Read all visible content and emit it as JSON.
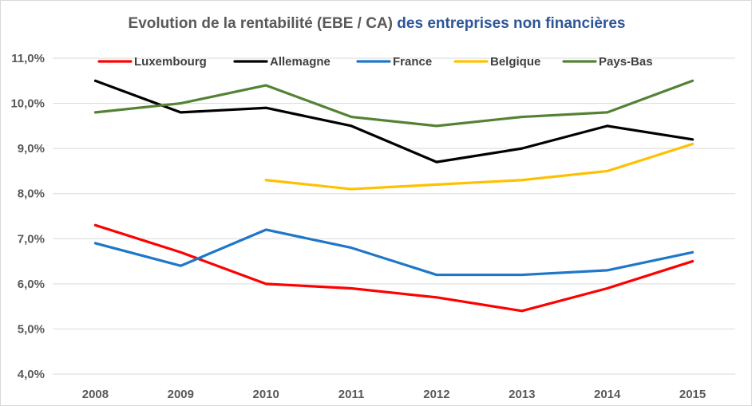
{
  "chart_data": {
    "type": "line",
    "title": "Evolution de la rentabilité (EBE / CA)",
    "subtitle": "des entreprises non financières",
    "categories": [
      "2008",
      "2009",
      "2010",
      "2011",
      "2012",
      "2013",
      "2014",
      "2015"
    ],
    "y_ticks": [
      "4,0%",
      "5,0%",
      "6,0%",
      "7,0%",
      "8,0%",
      "9,0%",
      "10,0%",
      "11,0%"
    ],
    "ylim": [
      4.0,
      11.0
    ],
    "y_unit": "%",
    "grid": true,
    "legend_position": "top",
    "series": [
      {
        "name": "Luxembourg",
        "color": "#ff0000",
        "values": [
          7.3,
          6.7,
          6.0,
          5.9,
          5.7,
          5.4,
          5.9,
          6.5
        ]
      },
      {
        "name": "Allemagne",
        "color": "#000000",
        "values": [
          10.5,
          9.8,
          9.9,
          9.5,
          8.7,
          9.0,
          9.5,
          9.2
        ]
      },
      {
        "name": "France",
        "color": "#1f77c8",
        "values": [
          6.9,
          6.4,
          7.2,
          6.8,
          6.2,
          6.2,
          6.3,
          6.7
        ]
      },
      {
        "name": "Belgique",
        "color": "#ffc000",
        "values": [
          null,
          null,
          8.3,
          8.1,
          8.2,
          8.3,
          8.5,
          9.1
        ]
      },
      {
        "name": "Pays-Bas",
        "color": "#548235",
        "values": [
          9.8,
          10.0,
          10.4,
          9.7,
          9.5,
          9.7,
          9.8,
          10.5
        ]
      }
    ]
  }
}
